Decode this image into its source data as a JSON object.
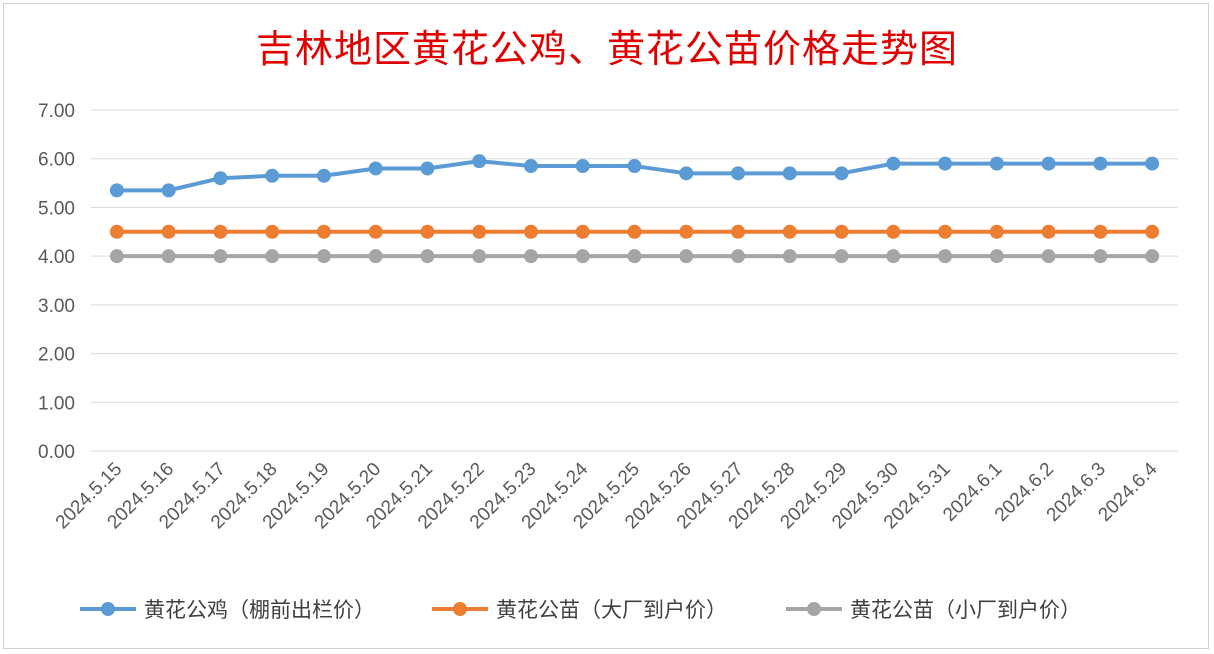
{
  "chart_data": {
    "type": "line",
    "title": "吉林地区黄花公鸡、黄花公苗价格走势图",
    "x": [
      "2024.5.15",
      "2024.5.16",
      "2024.5.17",
      "2024.5.18",
      "2024.5.19",
      "2024.5.20",
      "2024.5.21",
      "2024.5.22",
      "2024.5.23",
      "2024.5.24",
      "2024.5.25",
      "2024.5.26",
      "2024.5.27",
      "2024.5.28",
      "2024.5.29",
      "2024.5.30",
      "2024.5.31",
      "2024.6.1",
      "2024.6.2",
      "2024.6.3",
      "2024.6.4"
    ],
    "yticks": [
      "0.00",
      "1.00",
      "2.00",
      "3.00",
      "4.00",
      "5.00",
      "6.00",
      "7.00"
    ],
    "ylim": [
      0,
      7
    ],
    "grid": true,
    "legend_position": "bottom",
    "series": [
      {
        "name": "黄花公鸡（棚前出栏价）",
        "color": "#5b9bd5",
        "values": [
          5.35,
          5.35,
          5.6,
          5.65,
          5.65,
          5.8,
          5.8,
          5.95,
          5.85,
          5.85,
          5.85,
          5.7,
          5.7,
          5.7,
          5.7,
          5.9,
          5.9,
          5.9,
          5.9,
          5.9,
          5.9
        ]
      },
      {
        "name": "黄花公苗（大厂到户价）",
        "color": "#ed7d31",
        "values": [
          4.5,
          4.5,
          4.5,
          4.5,
          4.5,
          4.5,
          4.5,
          4.5,
          4.5,
          4.5,
          4.5,
          4.5,
          4.5,
          4.5,
          4.5,
          4.5,
          4.5,
          4.5,
          4.5,
          4.5,
          4.5
        ]
      },
      {
        "name": "黄花公苗（小厂到户价）",
        "color": "#a5a5a5",
        "values": [
          4,
          4,
          4,
          4,
          4,
          4,
          4,
          4,
          4,
          4,
          4,
          4,
          4,
          4,
          4,
          4,
          4,
          4,
          4,
          4,
          4
        ]
      }
    ]
  }
}
